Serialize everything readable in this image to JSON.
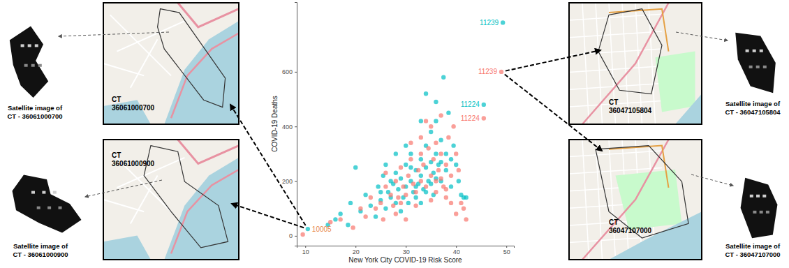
{
  "chart_data": {
    "type": "scatter",
    "x_label": "New York City COVID-19 Risk Score",
    "y_label": "COVID-19 Deaths",
    "xlim": [
      8.3,
      51.5
    ],
    "ylim": [
      -36,
      855
    ],
    "xticks": [
      10,
      20,
      30,
      40,
      50
    ],
    "yticks": [
      0,
      200,
      400,
      600
    ],
    "grid": false,
    "marker": "circle",
    "series": [
      {
        "color": "#00BFC4",
        "x": [
          10.5,
          14.5,
          16,
          17,
          18.5,
          19,
          20,
          21,
          22,
          23,
          24,
          24.5,
          25,
          25.5,
          26,
          26.5,
          27,
          27.5,
          28,
          28,
          28.5,
          29,
          29,
          29.5,
          30,
          30,
          30.5,
          31,
          31,
          31.5,
          32,
          32,
          32.5,
          33,
          33,
          33.5,
          34,
          34,
          34.5,
          35,
          35,
          35.5,
          35.5,
          36,
          36,
          36.5,
          37,
          37,
          37.5,
          38,
          38,
          38.5,
          39,
          39,
          39.5,
          40,
          40.5,
          41,
          41.5,
          42,
          33,
          34,
          36,
          31,
          30,
          28,
          27,
          26,
          25,
          35,
          37,
          36,
          32,
          33,
          34,
          45.5,
          49.3
        ],
        "values": [
          25,
          40,
          60,
          80,
          40,
          120,
          250,
          90,
          150,
          110,
          70,
          180,
          130,
          220,
          100,
          160,
          140,
          190,
          120,
          230,
          170,
          210,
          90,
          140,
          180,
          260,
          120,
          200,
          300,
          160,
          240,
          140,
          190,
          280,
          220,
          170,
          250,
          330,
          200,
          270,
          380,
          150,
          230,
          300,
          420,
          260,
          200,
          350,
          580,
          300,
          240,
          450,
          280,
          180,
          330,
          260,
          200,
          150,
          140,
          140,
          420,
          520,
          490,
          250,
          330,
          300,
          200,
          260,
          160,
          190,
          270,
          210,
          180,
          120,
          160,
          480,
          780
        ]
      },
      {
        "color": "#F8766D",
        "x": [
          9.5,
          15,
          17,
          19.5,
          21,
          22,
          23,
          24,
          25,
          25.5,
          26,
          27,
          27.5,
          28,
          28.5,
          29,
          29.5,
          30,
          30.5,
          31,
          31.5,
          32,
          32.5,
          33,
          33,
          33.5,
          34,
          34.5,
          35,
          35,
          35.5,
          36,
          36,
          36.5,
          37,
          37,
          37.5,
          38,
          38.5,
          39,
          39.5,
          40,
          40.5,
          41,
          41.5,
          42,
          40,
          39,
          38,
          30,
          28,
          26,
          33,
          34,
          31,
          36,
          35,
          32,
          29,
          37,
          38,
          45.5,
          49
        ],
        "values": [
          5,
          50,
          60,
          30,
          100,
          70,
          140,
          100,
          120,
          60,
          180,
          150,
          110,
          200,
          140,
          250,
          180,
          150,
          220,
          280,
          190,
          160,
          240,
          300,
          200,
          260,
          180,
          320,
          220,
          400,
          280,
          200,
          340,
          240,
          300,
          440,
          180,
          260,
          360,
          220,
          400,
          300,
          240,
          120,
          100,
          60,
          80,
          120,
          140,
          60,
          80,
          230,
          360,
          420,
          340,
          160,
          130,
          110,
          120,
          210,
          170,
          430,
          600
        ]
      }
    ],
    "annotations": [
      {
        "text": "11239",
        "x": 49.3,
        "y": 780,
        "color": "#00BFC4"
      },
      {
        "text": "11239",
        "x": 49,
        "y": 600,
        "color": "#F8766D"
      },
      {
        "text": "11224",
        "x": 45.5,
        "y": 480,
        "color": "#00BFC4"
      },
      {
        "text": "11224",
        "x": 45.5,
        "y": 430,
        "color": "#F8766D"
      },
      {
        "text": "10005",
        "x": 10.5,
        "y": 25,
        "color": "#E8894A"
      }
    ]
  },
  "panels": [
    {
      "ct_label": "CT",
      "ct_id": "36061000700",
      "caption": [
        "Satellite image of",
        "CT - 36061000700"
      ]
    },
    {
      "ct_label": "CT",
      "ct_id": "36061000900",
      "caption": [
        "Satellite image of",
        "CT - 36061000900"
      ]
    },
    {
      "ct_label": "CT",
      "ct_id": "36047105804",
      "caption": [
        "Satellite image of",
        "CT - 36047105804"
      ]
    },
    {
      "ct_label": "CT",
      "ct_id": "36047107000",
      "caption": [
        "Satellite image of",
        "CT - 36047107000"
      ]
    }
  ]
}
